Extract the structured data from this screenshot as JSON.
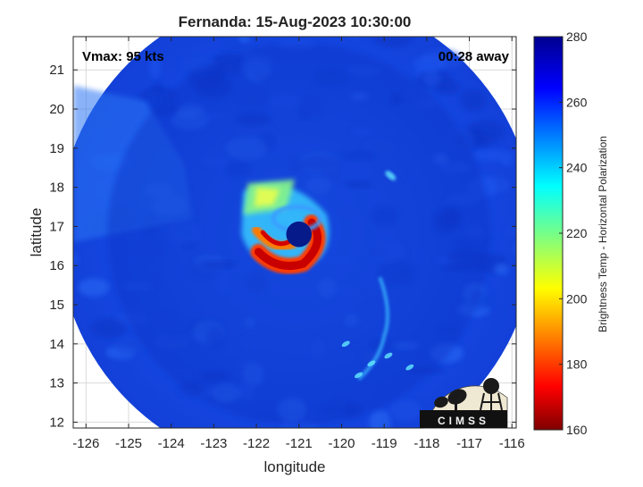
{
  "chart_data": {
    "type": "heatmap",
    "title": "Fernanda: 15-Aug-2023 10:30:00",
    "xlabel": "longitude",
    "ylabel": "latitude",
    "xlim": [
      -126.3,
      -115.9
    ],
    "ylim": [
      11.85,
      21.85
    ],
    "xticks": [
      -126,
      -125,
      -124,
      -123,
      -122,
      -121,
      -120,
      -119,
      -118,
      -117,
      -116
    ],
    "yticks": [
      12,
      13,
      14,
      15,
      16,
      17,
      18,
      19,
      20,
      21
    ],
    "grid": true,
    "annotations": {
      "intensity": "Vmax: 95 kts",
      "time_offset": "00:28 away"
    },
    "storm_center": {
      "lon": -121.0,
      "lat": 16.8
    },
    "swath": {
      "center_lon": -121.05,
      "center_lat": 16.85,
      "radius_deg": 5.6
    },
    "colorbar": {
      "label": "Brightness Temp - Horizontal Polarization",
      "min": 160,
      "max": 280,
      "ticks": [
        160,
        180,
        200,
        220,
        240,
        260,
        280
      ],
      "colormap": "jet"
    },
    "logo_text": "CIMSS"
  }
}
